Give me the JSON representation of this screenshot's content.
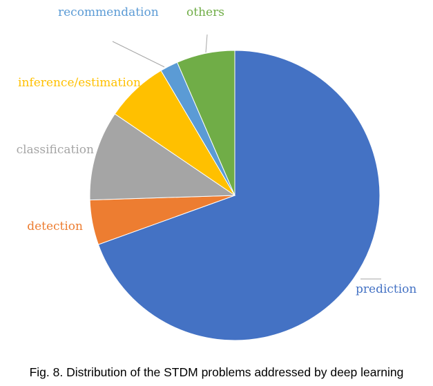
{
  "chart_data": {
    "type": "pie",
    "slices": [
      {
        "label": "prediction",
        "value": 69.5,
        "color": "#4472C4"
      },
      {
        "label": "detection",
        "value": 5.0,
        "color": "#ED7D31"
      },
      {
        "label": "classification",
        "value": 10.0,
        "color": "#A5A5A5"
      },
      {
        "label": "inference/estimation",
        "value": 7.0,
        "color": "#FFC000"
      },
      {
        "label": "recommendation",
        "value": 2.0,
        "color": "#5B9BD5"
      },
      {
        "label": "others",
        "value": 6.5,
        "color": "#70AD47"
      }
    ],
    "start": "12 o'clock",
    "direction": "clockwise",
    "legend": "none"
  },
  "caption": "Fig. 8. Distribution of the STDM problems addressed by deep learning"
}
